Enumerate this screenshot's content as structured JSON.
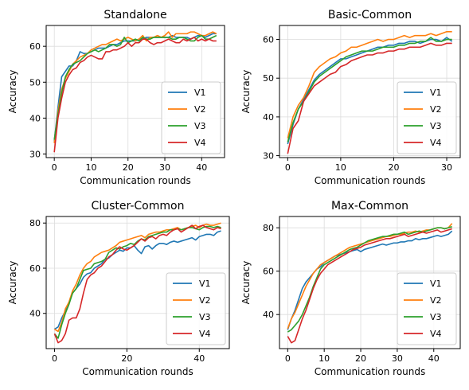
{
  "colors": {
    "V1": "#1f77b4",
    "V2": "#ff7f0e",
    "V3": "#2ca02c",
    "V4": "#d62728"
  },
  "chart_data": [
    {
      "type": "line",
      "title": "Standalone",
      "xlabel": "Communication rounds",
      "ylabel": "Accuracy",
      "xlim": [
        -2.2,
        46.2
      ],
      "ylim": [
        29,
        65.8
      ],
      "xticks": [
        0,
        10,
        20,
        30,
        40
      ],
      "yticks": [
        30,
        40,
        50,
        60
      ],
      "grid": true,
      "legend": "lower right",
      "x": [
        0,
        1,
        2,
        3,
        4,
        5,
        6,
        7,
        8,
        9,
        10,
        11,
        12,
        13,
        14,
        15,
        16,
        17,
        18,
        19,
        20,
        21,
        22,
        23,
        24,
        25,
        26,
        27,
        28,
        29,
        30,
        31,
        32,
        33,
        34,
        35,
        36,
        37,
        38,
        39,
        40,
        41,
        42,
        43,
        44
      ],
      "series": [
        {
          "name": "V1",
          "values": [
            33.5,
            43,
            51.5,
            53,
            54.5,
            54.5,
            56,
            58.5,
            58,
            58,
            58.5,
            59,
            59.5,
            59.5,
            59.5,
            60,
            60.5,
            60.5,
            61,
            61.5,
            61.5,
            61.5,
            61.5,
            62,
            62,
            62.5,
            62.5,
            62.5,
            62.5,
            62.5,
            62.5,
            62.5,
            63,
            62.5,
            62.5,
            62.5,
            62.5,
            62,
            62.5,
            63,
            63,
            62.5,
            63,
            63.5,
            63.5
          ]
        },
        {
          "name": "V2",
          "values": [
            33,
            42,
            48,
            51,
            53,
            55,
            56,
            57,
            57.5,
            58,
            59,
            59.5,
            60,
            60.5,
            60.5,
            61,
            61.5,
            62,
            61.5,
            62,
            62.5,
            62,
            61.5,
            62,
            63,
            61.5,
            62.5,
            62.5,
            63,
            62.5,
            63,
            64,
            62.5,
            63.5,
            63.5,
            63.5,
            63.5,
            64,
            64,
            63.5,
            63,
            63,
            63.5,
            64,
            63.5
          ]
        },
        {
          "name": "V3",
          "values": [
            34,
            41,
            47,
            51.5,
            53.5,
            55,
            55.5,
            56,
            57,
            58,
            58.5,
            59,
            58.5,
            59,
            59.5,
            60.5,
            60.5,
            60,
            60.5,
            62.5,
            61,
            61.5,
            62,
            61.5,
            62.5,
            62,
            62,
            62.5,
            62.5,
            62.5,
            62.5,
            62.5,
            62,
            62,
            62.5,
            62.5,
            62,
            61.5,
            61.5,
            62.5,
            63,
            62,
            62,
            62.5,
            63
          ]
        },
        {
          "name": "V4",
          "values": [
            30.5,
            40,
            45.5,
            50,
            52,
            53.5,
            54,
            55.5,
            56,
            57,
            57.5,
            57,
            56.5,
            56.5,
            58.5,
            58.5,
            59,
            59,
            59.5,
            60,
            61,
            60,
            61,
            61,
            62,
            62,
            61,
            60.5,
            61,
            61,
            61.5,
            62,
            61.5,
            61,
            61,
            62,
            61.5,
            62,
            62.5,
            61.5,
            62,
            61.5,
            62,
            61.5,
            61.5
          ]
        }
      ]
    },
    {
      "type": "line",
      "title": "Basic-Common",
      "xlabel": "Communication rounds",
      "ylabel": "Accuracy",
      "xlim": [
        -1.55,
        32.55
      ],
      "ylim": [
        29.5,
        63.6
      ],
      "xticks": [
        0,
        10,
        20,
        30
      ],
      "yticks": [
        30,
        40,
        50,
        60
      ],
      "grid": true,
      "legend": "lower right",
      "x": [
        0,
        1,
        2,
        3,
        4,
        5,
        6,
        7,
        8,
        9,
        10,
        11,
        12,
        13,
        14,
        15,
        16,
        17,
        18,
        19,
        20,
        21,
        22,
        23,
        24,
        25,
        26,
        27,
        28,
        29,
        30,
        31
      ],
      "series": [
        {
          "name": "V1",
          "values": [
            33,
            38,
            42,
            44.5,
            47,
            49.5,
            51,
            52,
            53,
            54,
            55,
            55,
            55.5,
            56,
            56.5,
            57,
            57.5,
            58,
            58,
            58.5,
            58.5,
            59,
            59,
            59.5,
            59.5,
            59,
            59.5,
            60,
            60,
            59.5,
            60.5,
            59.5
          ]
        },
        {
          "name": "V2",
          "values": [
            34.5,
            40,
            43,
            45,
            48,
            51.5,
            53,
            54,
            55,
            55.5,
            56.5,
            57,
            58,
            58,
            58.5,
            59,
            59.5,
            60,
            59.5,
            60,
            60,
            60.5,
            61,
            60.5,
            61,
            61,
            61,
            61.5,
            61,
            61.5,
            62,
            62
          ]
        },
        {
          "name": "V3",
          "values": [
            33.5,
            38.5,
            42,
            44,
            46.5,
            49,
            50.5,
            51.5,
            52.5,
            53.5,
            54.5,
            55.5,
            56,
            56.5,
            57,
            57,
            57,
            57.5,
            58,
            58,
            58,
            58.5,
            58.5,
            59,
            59,
            59.5,
            59.5,
            60.5,
            59.5,
            59.5,
            60,
            60
          ]
        },
        {
          "name": "V4",
          "values": [
            30.5,
            37,
            39,
            44,
            46,
            48,
            49,
            50,
            51,
            51.5,
            53,
            53.5,
            54.5,
            55,
            55.5,
            56,
            56,
            56.5,
            56.5,
            57,
            57,
            57.5,
            57.5,
            58,
            58,
            58,
            58.5,
            59,
            58.5,
            58.5,
            59,
            59
          ]
        }
      ]
    },
    {
      "type": "line",
      "title": "Cluster-Common",
      "xlabel": "Communication rounds",
      "ylabel": "Accuracy",
      "xlim": [
        -2.3,
        48.3
      ],
      "ylim": [
        24.4,
        82.9
      ],
      "xticks": [
        0,
        20,
        40
      ],
      "yticks": [
        40,
        60,
        80
      ],
      "grid": true,
      "legend": "lower right",
      "x": [
        0,
        1,
        2,
        3,
        4,
        5,
        6,
        7,
        8,
        9,
        10,
        11,
        12,
        13,
        14,
        15,
        16,
        17,
        18,
        19,
        20,
        21,
        22,
        23,
        24,
        25,
        26,
        27,
        28,
        29,
        30,
        31,
        32,
        33,
        34,
        35,
        36,
        37,
        38,
        39,
        40,
        41,
        42,
        43,
        44,
        45,
        46
      ],
      "series": [
        {
          "name": "V1",
          "values": [
            33,
            34,
            38,
            41,
            45,
            49,
            51,
            53,
            56,
            57.5,
            58,
            60,
            61,
            62,
            64,
            64.5,
            66,
            67,
            68,
            67.5,
            69,
            69,
            70,
            68,
            66.5,
            69.5,
            70,
            68.5,
            70,
            71,
            71,
            70.5,
            71.5,
            72,
            71.5,
            72,
            72.5,
            73,
            73.5,
            72.5,
            74,
            74.5,
            75,
            75,
            74.5,
            76,
            76.5
          ]
        },
        {
          "name": "V2",
          "values": [
            33,
            32,
            36,
            42,
            45,
            50,
            53,
            57,
            60,
            62,
            63,
            65,
            66,
            67,
            67.5,
            68,
            69,
            70,
            71.5,
            72,
            72.5,
            73,
            73.5,
            74,
            74.5,
            73.5,
            75,
            75.5,
            76,
            76,
            76.5,
            77,
            77,
            77.5,
            78,
            77,
            77.5,
            78,
            78.5,
            79,
            78,
            79,
            79.5,
            79,
            79,
            79.5,
            80
          ]
        },
        {
          "name": "V3",
          "values": [
            31,
            29,
            35,
            40,
            44,
            49,
            51,
            55,
            59,
            59.5,
            60,
            62,
            62.5,
            63,
            64,
            67,
            68,
            69,
            68.5,
            69.5,
            70,
            71,
            70.5,
            72,
            73,
            72.5,
            74,
            74.5,
            75,
            75.5,
            76,
            76,
            77,
            77,
            77.5,
            77,
            77.5,
            78,
            78,
            77.5,
            77,
            78,
            78.5,
            78.5,
            78,
            78.5,
            78
          ]
        },
        {
          "name": "V4",
          "values": [
            31,
            27,
            28,
            31,
            37,
            38,
            38,
            42,
            49,
            55,
            57,
            58,
            60,
            61,
            63,
            65,
            66,
            68,
            69.5,
            68.5,
            68,
            69,
            70,
            71.5,
            73,
            72,
            73.5,
            74,
            73,
            74.5,
            75,
            74.5,
            76,
            77,
            77.5,
            76,
            77,
            78,
            79,
            77.5,
            78.5,
            79,
            78,
            77.5,
            77,
            78,
            77.5
          ]
        }
      ]
    },
    {
      "type": "line",
      "title": "Max-Common",
      "xlabel": "Communication rounds",
      "ylabel": "Accuracy",
      "xlim": [
        -2.25,
        47.25
      ],
      "ylim": [
        24.3,
        85.2
      ],
      "xticks": [
        0,
        10,
        20,
        30,
        40
      ],
      "yticks": [
        40,
        60,
        80
      ],
      "grid": true,
      "legend": "lower right",
      "x": [
        0,
        1,
        2,
        3,
        4,
        5,
        6,
        7,
        8,
        9,
        10,
        11,
        12,
        13,
        14,
        15,
        16,
        17,
        18,
        19,
        20,
        21,
        22,
        23,
        24,
        25,
        26,
        27,
        28,
        29,
        30,
        31,
        32,
        33,
        34,
        35,
        36,
        37,
        38,
        39,
        40,
        41,
        42,
        43,
        44,
        45
      ],
      "series": [
        {
          "name": "V1",
          "values": [
            33,
            38,
            42,
            47,
            52,
            55,
            57,
            59,
            61,
            62,
            64,
            65,
            66,
            67,
            67.5,
            68,
            68.5,
            69,
            69.5,
            70,
            69,
            70,
            70.5,
            71,
            71.5,
            72,
            72.5,
            72,
            72.5,
            73,
            73,
            73.5,
            73.5,
            74,
            74,
            75,
            74.5,
            75,
            75,
            75.5,
            76,
            76.5,
            76,
            76.5,
            77,
            78.5
          ]
        },
        {
          "name": "V2",
          "values": [
            33.5,
            38,
            41,
            45,
            49,
            53,
            56,
            59,
            61,
            63,
            64,
            65,
            66,
            67,
            68,
            69,
            70,
            71,
            71.5,
            72,
            72.5,
            73,
            73.5,
            74,
            74.5,
            75,
            75.5,
            76,
            76,
            76.5,
            77,
            77,
            77.5,
            78,
            78,
            78.5,
            78,
            78.5,
            79,
            79,
            79.5,
            80,
            80,
            79.5,
            80,
            82
          ]
        },
        {
          "name": "V3",
          "values": [
            32,
            33,
            35,
            37,
            40,
            44,
            48,
            53,
            57,
            61,
            63,
            64,
            65,
            66,
            67,
            68,
            69,
            70,
            70.5,
            71,
            72,
            73,
            74,
            74.5,
            75,
            75.5,
            76,
            76,
            76.5,
            77,
            77,
            77.5,
            78,
            77,
            77.5,
            78,
            78.5,
            78,
            78.5,
            79,
            79.5,
            80,
            80,
            79.5,
            80,
            80.5
          ]
        },
        {
          "name": "V4",
          "values": [
            30,
            27,
            28,
            33,
            38,
            42,
            47,
            52,
            56,
            59,
            61,
            63,
            64,
            65,
            66,
            67,
            68,
            69,
            70,
            70.5,
            71,
            72,
            72.5,
            73,
            73.5,
            74,
            74.5,
            75,
            75,
            75.5,
            76,
            76.5,
            77,
            76,
            76.5,
            77,
            77.5,
            78,
            77.5,
            78,
            78.5,
            79,
            78,
            78.5,
            79,
            79.5
          ]
        }
      ]
    }
  ]
}
